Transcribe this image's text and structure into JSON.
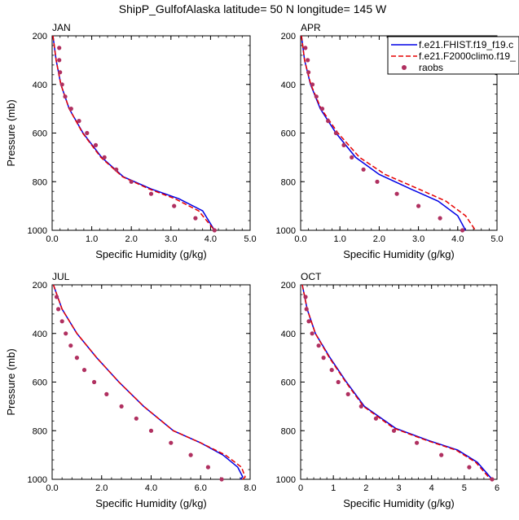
{
  "title": "ShipP_GulfofAlaska  latitude= 50 N longitude= 145 W",
  "colors": {
    "series1": "#0000e6",
    "series2": "#e60000",
    "obs": "#b03060",
    "axis": "#000000"
  },
  "legend": {
    "placement": "top-right of APR panel",
    "entries": [
      {
        "label": "f.e21.FHIST.f19_f19.c",
        "style": "solid",
        "color": "#0000e6"
      },
      {
        "label": "f.e21.F2000climo.f19_",
        "style": "dashed",
        "color": "#e60000"
      },
      {
        "label": "raobs",
        "style": "marker",
        "color": "#b03060"
      }
    ]
  },
  "chart_data": [
    {
      "type": "line",
      "panel": "JAN",
      "xlabel": "Specific Humidity (g/kg)",
      "ylabel": "Pressure (mb)",
      "xlim": [
        0,
        5
      ],
      "ylim": [
        1000,
        200
      ],
      "y_reversed": true,
      "xticks": [
        "0.0",
        "1.0",
        "2.0",
        "3.0",
        "4.0",
        "5.0"
      ],
      "yticks": [
        "200",
        "400",
        "600",
        "800",
        "1000"
      ],
      "series": [
        {
          "name": "f.e21.FHIST.f19_f19.c",
          "points": [
            [
              0.02,
              200
            ],
            [
              0.1,
              300
            ],
            [
              0.22,
              400
            ],
            [
              0.43,
              500
            ],
            [
              0.78,
              600
            ],
            [
              1.25,
              700
            ],
            [
              1.8,
              780
            ],
            [
              2.5,
              830
            ],
            [
              3.2,
              870
            ],
            [
              3.8,
              920
            ],
            [
              4.1,
              1000
            ]
          ]
        },
        {
          "name": "f.e21.F2000climo.f19_",
          "points": [
            [
              0.02,
              200
            ],
            [
              0.1,
              300
            ],
            [
              0.22,
              400
            ],
            [
              0.43,
              500
            ],
            [
              0.77,
              600
            ],
            [
              1.23,
              700
            ],
            [
              1.78,
              780
            ],
            [
              2.45,
              830
            ],
            [
              3.1,
              870
            ],
            [
              3.7,
              920
            ],
            [
              4.1,
              1000
            ]
          ]
        }
      ],
      "obs": [
        [
          0.18,
          250
        ],
        [
          0.18,
          300
        ],
        [
          0.2,
          350
        ],
        [
          0.25,
          400
        ],
        [
          0.33,
          450
        ],
        [
          0.48,
          500
        ],
        [
          0.68,
          550
        ],
        [
          0.88,
          600
        ],
        [
          1.1,
          650
        ],
        [
          1.32,
          700
        ],
        [
          1.62,
          750
        ],
        [
          2.0,
          800
        ],
        [
          2.5,
          850
        ],
        [
          3.08,
          900
        ],
        [
          3.62,
          950
        ],
        [
          4.1,
          1000
        ]
      ]
    },
    {
      "type": "line",
      "panel": "APR",
      "xlabel": "Specific Humidity (g/kg)",
      "ylabel": "",
      "xlim": [
        0,
        5
      ],
      "ylim": [
        1000,
        200
      ],
      "y_reversed": true,
      "xticks": [
        "0.0",
        "1.0",
        "2.0",
        "3.0",
        "4.0",
        "5.0"
      ],
      "yticks": [
        "200",
        "400",
        "600",
        "800",
        "1000"
      ],
      "series": [
        {
          "name": "f.e21.FHIST.f19_f19.c",
          "points": [
            [
              0.02,
              200
            ],
            [
              0.1,
              300
            ],
            [
              0.25,
              400
            ],
            [
              0.5,
              500
            ],
            [
              0.9,
              600
            ],
            [
              1.4,
              700
            ],
            [
              2.0,
              770
            ],
            [
              2.8,
              830
            ],
            [
              3.5,
              880
            ],
            [
              4.0,
              940
            ],
            [
              4.2,
              1000
            ]
          ]
        },
        {
          "name": "f.e21.F2000climo.f19_",
          "points": [
            [
              0.02,
              200
            ],
            [
              0.1,
              300
            ],
            [
              0.26,
              400
            ],
            [
              0.52,
              500
            ],
            [
              0.95,
              600
            ],
            [
              1.5,
              700
            ],
            [
              2.15,
              770
            ],
            [
              3.0,
              830
            ],
            [
              3.7,
              880
            ],
            [
              4.2,
              940
            ],
            [
              4.45,
              1000
            ]
          ]
        }
      ],
      "obs": [
        [
          0.12,
          250
        ],
        [
          0.18,
          300
        ],
        [
          0.2,
          350
        ],
        [
          0.3,
          400
        ],
        [
          0.4,
          450
        ],
        [
          0.55,
          500
        ],
        [
          0.7,
          550
        ],
        [
          0.9,
          600
        ],
        [
          1.1,
          650
        ],
        [
          1.3,
          700
        ],
        [
          1.6,
          750
        ],
        [
          1.95,
          800
        ],
        [
          2.45,
          850
        ],
        [
          3.0,
          900
        ],
        [
          3.55,
          950
        ],
        [
          4.12,
          1000
        ]
      ]
    },
    {
      "type": "line",
      "panel": "JUL",
      "xlabel": "Specific Humidity (g/kg)",
      "ylabel": "Pressure (mb)",
      "xlim": [
        0,
        8
      ],
      "ylim": [
        1000,
        200
      ],
      "y_reversed": true,
      "xticks": [
        "0.0",
        "2.0",
        "4.0",
        "6.0",
        "8.0"
      ],
      "yticks": [
        "200",
        "400",
        "600",
        "800",
        "1000"
      ],
      "series": [
        {
          "name": "f.e21.FHIST.f19_f19.c",
          "points": [
            [
              0.05,
              200
            ],
            [
              0.4,
              300
            ],
            [
              1.0,
              400
            ],
            [
              1.8,
              500
            ],
            [
              2.7,
              600
            ],
            [
              3.7,
              700
            ],
            [
              4.9,
              800
            ],
            [
              6.0,
              850
            ],
            [
              6.9,
              900
            ],
            [
              7.5,
              950
            ],
            [
              7.7,
              990
            ],
            [
              7.6,
              1000
            ]
          ]
        },
        {
          "name": "f.e21.F2000climo.f19_",
          "points": [
            [
              0.05,
              200
            ],
            [
              0.4,
              300
            ],
            [
              1.0,
              400
            ],
            [
              1.8,
              500
            ],
            [
              2.7,
              600
            ],
            [
              3.7,
              700
            ],
            [
              4.9,
              800
            ],
            [
              6.0,
              850
            ],
            [
              7.0,
              900
            ],
            [
              7.65,
              950
            ],
            [
              7.8,
              990
            ],
            [
              7.7,
              1000
            ]
          ]
        }
      ],
      "obs": [
        [
          0.18,
          250
        ],
        [
          0.25,
          300
        ],
        [
          0.4,
          350
        ],
        [
          0.55,
          400
        ],
        [
          0.75,
          450
        ],
        [
          1.0,
          500
        ],
        [
          1.3,
          550
        ],
        [
          1.7,
          600
        ],
        [
          2.2,
          650
        ],
        [
          2.8,
          700
        ],
        [
          3.4,
          750
        ],
        [
          4.0,
          800
        ],
        [
          4.8,
          850
        ],
        [
          5.6,
          900
        ],
        [
          6.3,
          950
        ],
        [
          6.85,
          1000
        ]
      ]
    },
    {
      "type": "line",
      "panel": "OCT",
      "xlabel": "Specific Humidity (g/kg)",
      "ylabel": "",
      "xlim": [
        0,
        6
      ],
      "ylim": [
        1000,
        200
      ],
      "y_reversed": true,
      "xticks": [
        "0",
        "1",
        "2",
        "3",
        "4",
        "5",
        "6"
      ],
      "yticks": [
        "200",
        "400",
        "600",
        "800",
        "1000"
      ],
      "series": [
        {
          "name": "f.e21.FHIST.f19_f19.c",
          "points": [
            [
              0.05,
              200
            ],
            [
              0.2,
              300
            ],
            [
              0.45,
              400
            ],
            [
              0.9,
              500
            ],
            [
              1.4,
              600
            ],
            [
              1.95,
              700
            ],
            [
              2.9,
              790
            ],
            [
              3.9,
              840
            ],
            [
              4.8,
              880
            ],
            [
              5.4,
              930
            ],
            [
              5.85,
              1000
            ]
          ]
        },
        {
          "name": "f.e21.F2000climo.f19_",
          "points": [
            [
              0.05,
              200
            ],
            [
              0.2,
              300
            ],
            [
              0.45,
              400
            ],
            [
              0.88,
              500
            ],
            [
              1.38,
              600
            ],
            [
              1.92,
              700
            ],
            [
              2.85,
              790
            ],
            [
              3.85,
              840
            ],
            [
              4.75,
              880
            ],
            [
              5.35,
              930
            ],
            [
              5.8,
              1000
            ]
          ]
        }
      ],
      "obs": [
        [
          0.15,
          250
        ],
        [
          0.18,
          300
        ],
        [
          0.25,
          350
        ],
        [
          0.35,
          400
        ],
        [
          0.55,
          450
        ],
        [
          0.7,
          500
        ],
        [
          0.95,
          550
        ],
        [
          1.15,
          600
        ],
        [
          1.45,
          650
        ],
        [
          1.85,
          700
        ],
        [
          2.3,
          750
        ],
        [
          2.85,
          800
        ],
        [
          3.55,
          850
        ],
        [
          4.3,
          900
        ],
        [
          5.15,
          950
        ],
        [
          5.85,
          1000
        ]
      ]
    }
  ]
}
